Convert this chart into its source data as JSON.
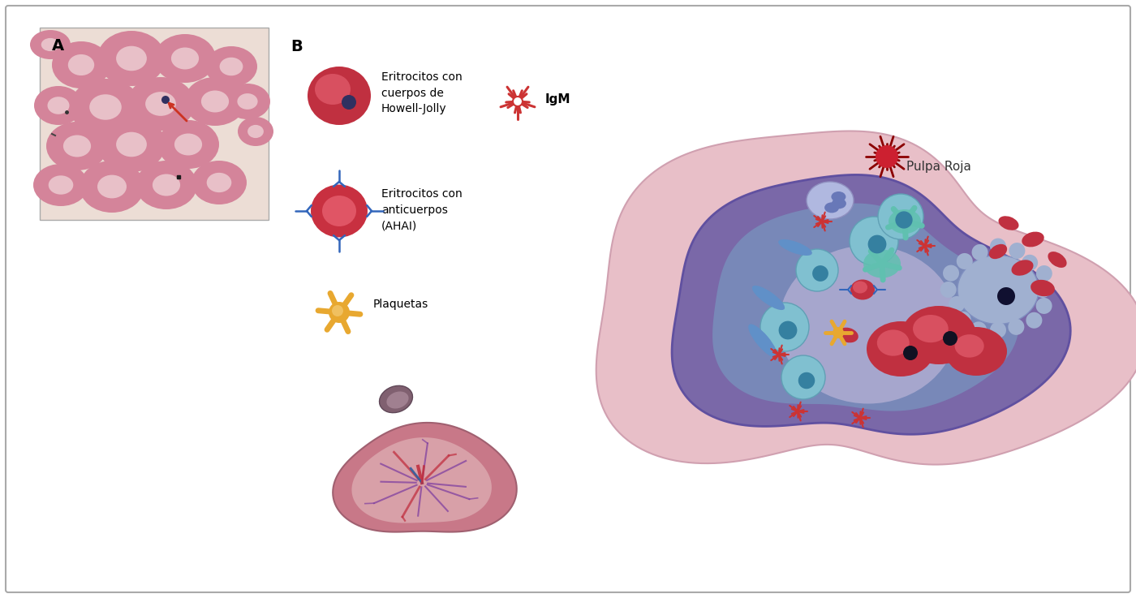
{
  "bg_color": "#ffffff",
  "border_color": "#aaaaaa",
  "panel_a_bg": "#ecddd5",
  "rbc_pink": "#d4849a",
  "rbc_pale": "#e8c0c8",
  "rbc_dark_red": "#c03040",
  "rbc_highlight": "#d85060",
  "hj_body_color": "#303060",
  "arrow_color": "#cc3322",
  "ab_blue": "#3366bb",
  "platelet_gold": "#e8a830",
  "platelet_gold2": "#f0c060",
  "igm_red": "#cc3333",
  "spleen_outer_pink": "#e8bfc5",
  "spleen_mid_purple": "#7a68a8",
  "spleen_inner_blue": "#7888b8",
  "spleen_white_area": "#ccc0e0",
  "spleen_red_area": "#e8d0d8",
  "label_A": "A",
  "label_B": "B",
  "text_hj": "Eritrocitos con\ncuerpos de\nHowell-Jolly",
  "text_ahai": "Eritrocitos con\nanticuerpos\n(AHAI)",
  "text_plaquetas": "Plaquetas",
  "text_igm": "IgM",
  "text_pulpa": "Pulpa Roja",
  "figsize": [
    14.0,
    7.37
  ],
  "dpi": 100
}
